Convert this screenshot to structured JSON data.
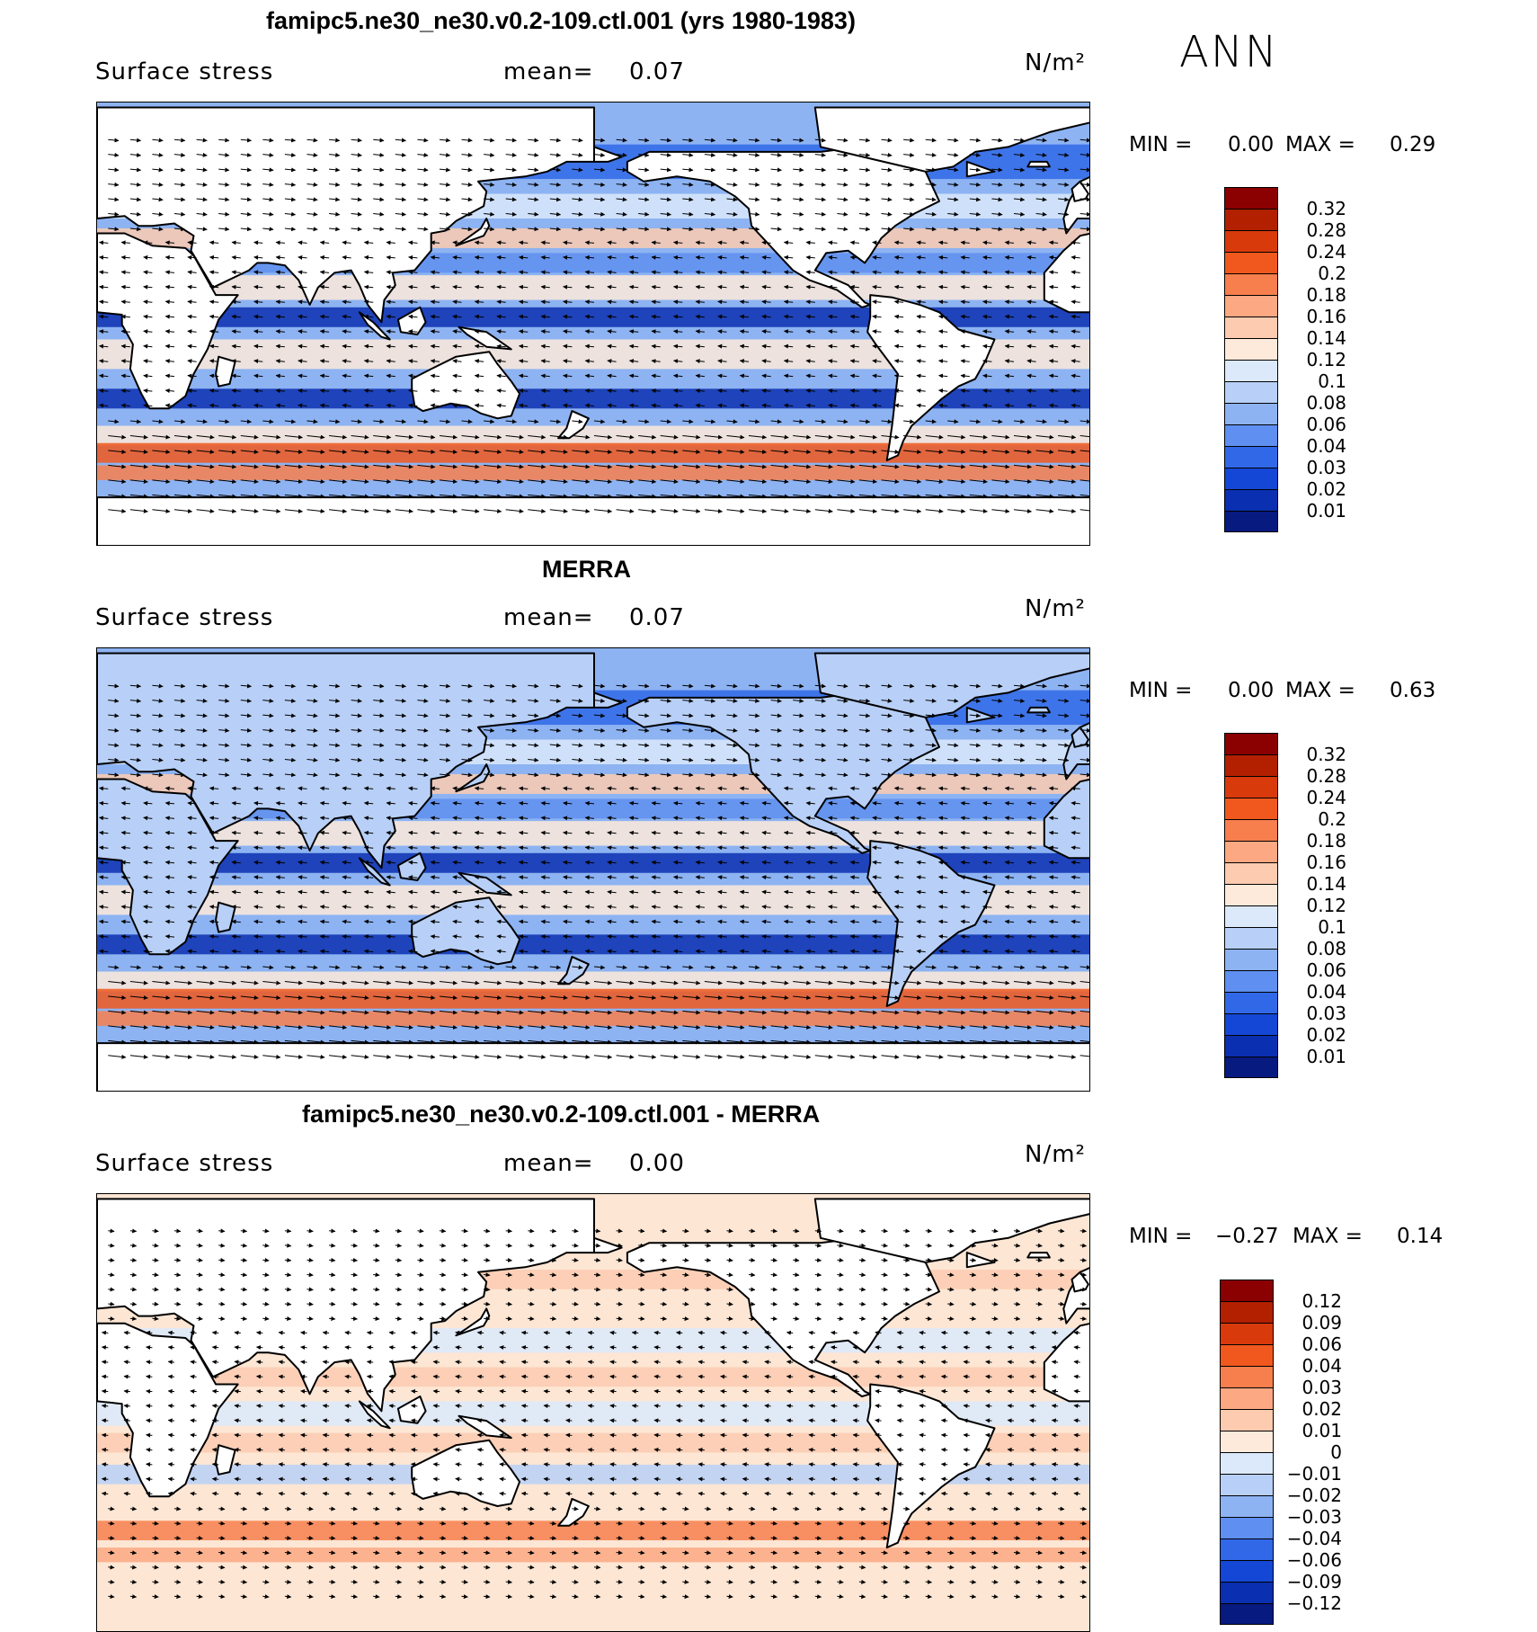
{
  "season": "ANN",
  "panels": [
    {
      "title": "famipc5.ne30_ne30.v0.2-109.ctl.001 (yrs 1980-1983)",
      "variable": "Surface stress",
      "mean_label": "mean=",
      "mean_value": "0.07",
      "units": "N/m²",
      "min_label": "MIN =",
      "min_value": "0.00",
      "max_label": "MAX =",
      "max_value": "0.29",
      "kind": "model"
    },
    {
      "title": "MERRA",
      "variable": "Surface stress",
      "mean_label": "mean=",
      "mean_value": "0.07",
      "units": "N/m²",
      "min_label": "MIN =",
      "min_value": "0.00",
      "max_label": "MAX =",
      "max_value": "0.63",
      "kind": "obs"
    },
    {
      "title": "famipc5.ne30_ne30.v0.2-109.ctl.001 - MERRA",
      "variable": "Surface stress",
      "mean_label": "mean=",
      "mean_value": "0.00",
      "units": "N/m²",
      "min_label": "MIN =",
      "min_value": "−0.27",
      "max_label": "MAX =",
      "max_value": "0.14",
      "kind": "diff"
    }
  ],
  "colorbars": {
    "abs": {
      "ticks": [
        "0.32",
        "0.28",
        "0.24",
        "0.2",
        "0.18",
        "0.16",
        "0.14",
        "0.12",
        "0.1",
        "0.08",
        "0.06",
        "0.04",
        "0.03",
        "0.02",
        "0.01"
      ],
      "colors": [
        "#8b0000",
        "#b22000",
        "#d93a0c",
        "#f0581e",
        "#f77f4d",
        "#fca882",
        "#fdcbb0",
        "#feeadb",
        "#dbe9fb",
        "#b8d0f7",
        "#8db3f2",
        "#5f8ff0",
        "#3068e8",
        "#1447d6",
        "#0a2fb0",
        "#071a80"
      ]
    },
    "diff": {
      "ticks": [
        "0.12",
        "0.09",
        "0.06",
        "0.04",
        "0.03",
        "0.02",
        "0.01",
        "0",
        "−0.01",
        "−0.02",
        "−0.03",
        "−0.04",
        "−0.06",
        "−0.09",
        "−0.12"
      ],
      "colors": [
        "#8b0000",
        "#b22000",
        "#d93a0c",
        "#f0581e",
        "#f77f4d",
        "#fca882",
        "#fdcbb0",
        "#feeadb",
        "#dbe9fb",
        "#b8d0f7",
        "#8db3f2",
        "#5f8ff0",
        "#3068e8",
        "#1447d6",
        "#0a2fb0",
        "#071a80"
      ]
    }
  }
}
